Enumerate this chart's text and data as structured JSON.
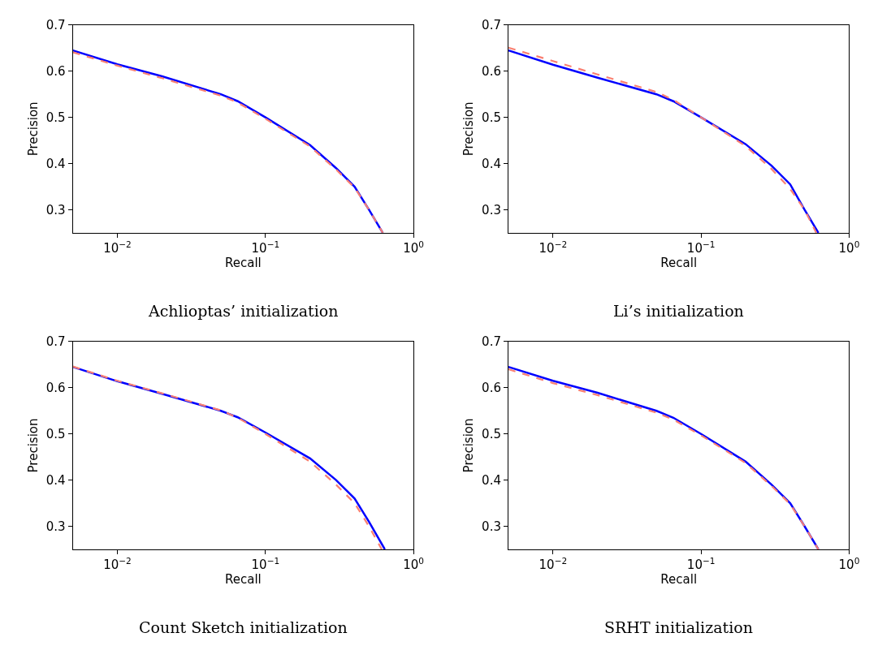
{
  "chart_data": [
    {
      "type": "line",
      "title": "Achlioptas’ initialization",
      "xlabel": "Recall",
      "ylabel": "Precision",
      "log": "x",
      "xlim": [
        0.005,
        1
      ],
      "ylim": [
        0.25,
        0.7
      ],
      "xticks": [
        {
          "value": 0.01,
          "label": "10$^{−2}$"
        },
        {
          "value": 0.1,
          "label": "10$^{−1}$"
        },
        {
          "value": 1,
          "label": "10$^{0}$"
        }
      ],
      "yticks": [
        0.3,
        0.4,
        0.5,
        0.6,
        0.7
      ],
      "series": [
        {
          "color": "#0000ff",
          "line_style": "solid",
          "x": [
            0.005,
            0.01,
            0.02,
            0.05,
            0.065,
            0.1,
            0.2,
            0.3,
            0.4,
            0.5,
            0.62
          ],
          "values": [
            0.645,
            0.615,
            0.589,
            0.55,
            0.535,
            0.5,
            0.44,
            0.39,
            0.35,
            0.3,
            0.25
          ]
        },
        {
          "color": "#fa8072",
          "line_style": "dashed",
          "x": [
            0.005,
            0.01,
            0.02,
            0.05,
            0.065,
            0.1,
            0.2,
            0.3,
            0.4,
            0.5,
            0.62
          ],
          "values": [
            0.641,
            0.612,
            0.585,
            0.547,
            0.532,
            0.497,
            0.437,
            0.387,
            0.348,
            0.3,
            0.25
          ]
        }
      ]
    },
    {
      "type": "line",
      "title": "Li’s initialization",
      "xlabel": "Recall",
      "ylabel": "Precision",
      "log": "x",
      "xlim": [
        0.005,
        1
      ],
      "ylim": [
        0.25,
        0.7
      ],
      "xticks": [
        {
          "value": 0.01,
          "label": "10$^{−2}$"
        },
        {
          "value": 0.1,
          "label": "10$^{−1}$"
        },
        {
          "value": 1,
          "label": "10$^{0}$"
        }
      ],
      "yticks": [
        0.3,
        0.4,
        0.5,
        0.6,
        0.7
      ],
      "series": [
        {
          "color": "#0000ff",
          "line_style": "solid",
          "x": [
            0.005,
            0.01,
            0.02,
            0.05,
            0.065,
            0.1,
            0.2,
            0.3,
            0.4,
            0.5,
            0.62
          ],
          "values": [
            0.645,
            0.614,
            0.586,
            0.55,
            0.535,
            0.5,
            0.442,
            0.395,
            0.355,
            0.3,
            0.25
          ]
        },
        {
          "color": "#fa8072",
          "line_style": "dashed",
          "x": [
            0.005,
            0.01,
            0.02,
            0.05,
            0.065,
            0.1,
            0.2,
            0.3,
            0.4,
            0.5,
            0.6
          ],
          "values": [
            0.651,
            0.622,
            0.593,
            0.555,
            0.538,
            0.5,
            0.438,
            0.388,
            0.345,
            0.3,
            0.25
          ]
        }
      ]
    },
    {
      "type": "line",
      "title": "Count Sketch initialization",
      "xlabel": "Recall",
      "ylabel": "Precision",
      "log": "x",
      "xlim": [
        0.005,
        1
      ],
      "ylim": [
        0.25,
        0.7
      ],
      "xticks": [
        {
          "value": 0.01,
          "label": "10$^{−2}$"
        },
        {
          "value": 0.1,
          "label": "10$^{−1}$"
        },
        {
          "value": 1,
          "label": "10$^{0}$"
        }
      ],
      "yticks": [
        0.3,
        0.4,
        0.5,
        0.6,
        0.7
      ],
      "series": [
        {
          "color": "#0000ff",
          "line_style": "solid",
          "x": [
            0.005,
            0.01,
            0.02,
            0.05,
            0.065,
            0.1,
            0.2,
            0.3,
            0.4,
            0.5,
            0.64
          ],
          "values": [
            0.645,
            0.614,
            0.587,
            0.55,
            0.536,
            0.503,
            0.447,
            0.4,
            0.36,
            0.31,
            0.25
          ]
        },
        {
          "color": "#fa8072",
          "line_style": "dashed",
          "x": [
            0.005,
            0.01,
            0.02,
            0.05,
            0.065,
            0.1,
            0.2,
            0.3,
            0.4,
            0.5,
            0.61
          ],
          "values": [
            0.646,
            0.615,
            0.588,
            0.551,
            0.535,
            0.5,
            0.44,
            0.39,
            0.35,
            0.3,
            0.25
          ]
        }
      ]
    },
    {
      "type": "line",
      "title": "SRHT initialization",
      "xlabel": "Recall",
      "ylabel": "Precision",
      "log": "x",
      "xlim": [
        0.005,
        1
      ],
      "ylim": [
        0.25,
        0.7
      ],
      "xticks": [
        {
          "value": 0.01,
          "label": "10$^{−2}$"
        },
        {
          "value": 0.1,
          "label": "10$^{−1}$"
        },
        {
          "value": 1,
          "label": "10$^{0}$"
        }
      ],
      "yticks": [
        0.3,
        0.4,
        0.5,
        0.6,
        0.7
      ],
      "series": [
        {
          "color": "#0000ff",
          "line_style": "solid",
          "x": [
            0.005,
            0.01,
            0.02,
            0.05,
            0.065,
            0.1,
            0.2,
            0.3,
            0.4,
            0.5,
            0.62
          ],
          "values": [
            0.645,
            0.615,
            0.589,
            0.55,
            0.535,
            0.5,
            0.44,
            0.39,
            0.35,
            0.3,
            0.25
          ]
        },
        {
          "color": "#fa8072",
          "line_style": "dashed",
          "x": [
            0.005,
            0.01,
            0.02,
            0.05,
            0.065,
            0.1,
            0.2,
            0.3,
            0.4,
            0.5,
            0.62
          ],
          "values": [
            0.64,
            0.61,
            0.584,
            0.546,
            0.531,
            0.497,
            0.437,
            0.387,
            0.348,
            0.3,
            0.25
          ]
        }
      ]
    }
  ]
}
